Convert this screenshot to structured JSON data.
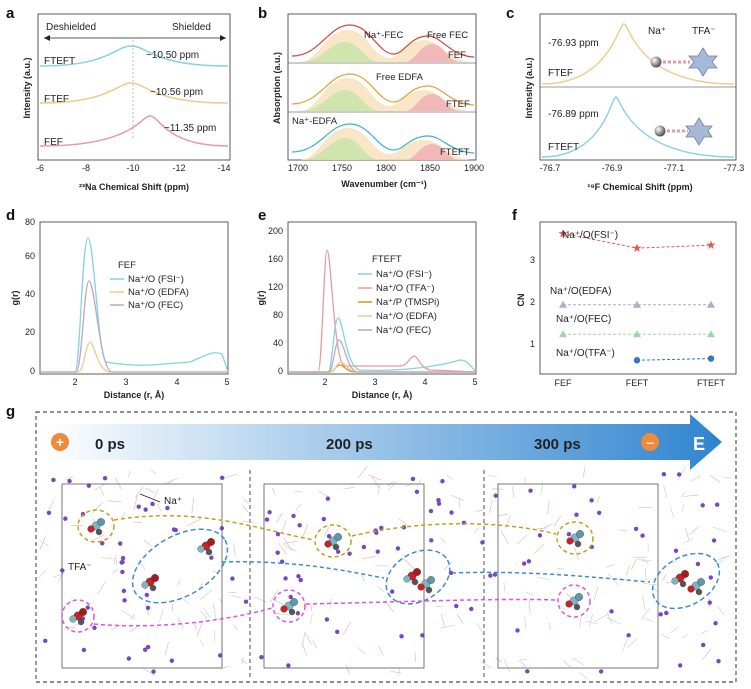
{
  "colors": {
    "blue": "#86d1e3",
    "orange": "#f2c98a",
    "gray": "#b9a9c4",
    "pink": "#e79aa3",
    "gold": "#c79b1e",
    "green": "#9fd6a6",
    "red": "#e05a55",
    "navy": "#3b72c9"
  },
  "panels": {
    "a": "a",
    "b": "b",
    "c": "c",
    "d": "d",
    "e": "e",
    "f": "f",
    "g": "g"
  },
  "chart_data": [
    {
      "id": "a",
      "type": "line",
      "xlabel": "²³Na Chemical Shift (ppm)",
      "ylabel": "Intensity (a.u.)",
      "xlim": [
        -6,
        -14
      ],
      "xticks": [
        "-6",
        "-8",
        "-10",
        "-12",
        "-14"
      ],
      "header": {
        "left": "Deshielded",
        "right": "Shielded"
      },
      "series": [
        {
          "name": "FTEFT",
          "peak": -10.5,
          "color": "#86d1e3",
          "label": "~10.50 ppm"
        },
        {
          "name": "FTEF",
          "peak": -10.56,
          "color": "#f2c98a",
          "label": "~10.56 ppm"
        },
        {
          "name": "FEF",
          "peak": -11.35,
          "color": "#e79aa3",
          "label": "~11.35 ppm"
        }
      ]
    },
    {
      "id": "b",
      "type": "line",
      "xlabel": "Wavenumber (cm⁻¹)",
      "ylabel": "Absorption (a.u.)",
      "xlim": [
        1690,
        1900
      ],
      "xticks": [
        "1700",
        "1750",
        "1800",
        "1850",
        "1900"
      ],
      "series": [
        {
          "name": "FEF"
        },
        {
          "name": "FTEF"
        },
        {
          "name": "FTEFT"
        }
      ],
      "annotations": [
        "Na⁺-FEC",
        "Free FEC",
        "Free EDFA",
        "Na⁺-EDFA"
      ]
    },
    {
      "id": "c",
      "type": "line",
      "xlabel": "¹⁹F Chemical Shift (ppm)",
      "ylabel": "Intensity (a.u.)",
      "xlim": [
        -76.7,
        -77.3
      ],
      "xticks": [
        "-76.7",
        "-76.9",
        "-77.1",
        "-77.3"
      ],
      "series": [
        {
          "name": "FTEF",
          "peak": -76.93,
          "label": "-76.93 ppm",
          "color": "#f2c98a"
        },
        {
          "name": "FTEFT",
          "peak": -76.89,
          "label": "-76.89 ppm",
          "color": "#86d1e3"
        }
      ],
      "icons": [
        "Na⁺",
        "TFA⁻"
      ]
    },
    {
      "id": "d",
      "type": "line",
      "xlabel": "Distance (r, Å)",
      "ylabel": "g(r)",
      "xlim": [
        1.3,
        5
      ],
      "ylim": [
        0,
        80
      ],
      "xticks": [
        "2",
        "3",
        "4",
        "5"
      ],
      "yticks": [
        "0",
        "20",
        "40",
        "60",
        "80"
      ],
      "legend_title": "FEF",
      "series": [
        {
          "name": "Na⁺/O (FSI⁻)",
          "peak": 70,
          "color": "#86d1e3"
        },
        {
          "name": "Na⁺/O (EDFA)",
          "peak": 13,
          "color": "#f2c98a"
        },
        {
          "name": "Na⁺/O (FEC)",
          "peak": 47,
          "color": "#b9a9c4"
        }
      ]
    },
    {
      "id": "e",
      "type": "line",
      "xlabel": "Distance (r, Å)",
      "ylabel": "g(r)",
      "xlim": [
        1.3,
        5
      ],
      "ylim": [
        0,
        210
      ],
      "xticks": [
        "2",
        "3",
        "4",
        "5"
      ],
      "yticks": [
        "0",
        "40",
        "80",
        "120",
        "160",
        "200"
      ],
      "legend_title": "FTEFT",
      "series": [
        {
          "name": "Na⁺/O (FSI⁻)",
          "peak": 70,
          "color": "#86d1e3"
        },
        {
          "name": "Na⁺/O (TFA⁻)",
          "peak": 172,
          "color": "#e79aa3"
        },
        {
          "name": "Na⁺/P (TMSPi)",
          "peak": 10,
          "color": "#c79b1e"
        },
        {
          "name": "Na⁺/O (EDFA)",
          "peak": 15,
          "color": "#f2c98a"
        },
        {
          "name": "Na⁺/O (FEC)",
          "peak": 45,
          "color": "#b9a9c4"
        }
      ]
    },
    {
      "id": "f",
      "type": "scatter",
      "xlabel": "",
      "ylabel": "CN",
      "ylim": [
        0,
        3.6
      ],
      "categories": [
        "FEF",
        "FEFT",
        "FTEFT"
      ],
      "yticks": [
        "1",
        "2",
        "3"
      ],
      "series": [
        {
          "name": "Na⁺/O(FSI⁻)",
          "values": [
            3.3,
            2.95,
            3.02
          ],
          "color": "#e05a55"
        },
        {
          "name": "Na⁺/O(EDFA)",
          "values": [
            1.6,
            1.6,
            1.6
          ],
          "color": "#b9a9c4"
        },
        {
          "name": "Na⁺/O(FEC)",
          "values": [
            0.9,
            0.9,
            0.9
          ],
          "color": "#9fd6a6"
        },
        {
          "name": "Na⁺/O(TFA⁻)",
          "values": [
            null,
            0.28,
            0.32
          ],
          "color": "#3b72c9"
        }
      ]
    },
    {
      "id": "g",
      "type": "other",
      "timeline": [
        "0 ps",
        "200 ps",
        "300 ps"
      ],
      "field": "E",
      "labels": [
        "Na⁺",
        "TFA⁻"
      ]
    }
  ]
}
